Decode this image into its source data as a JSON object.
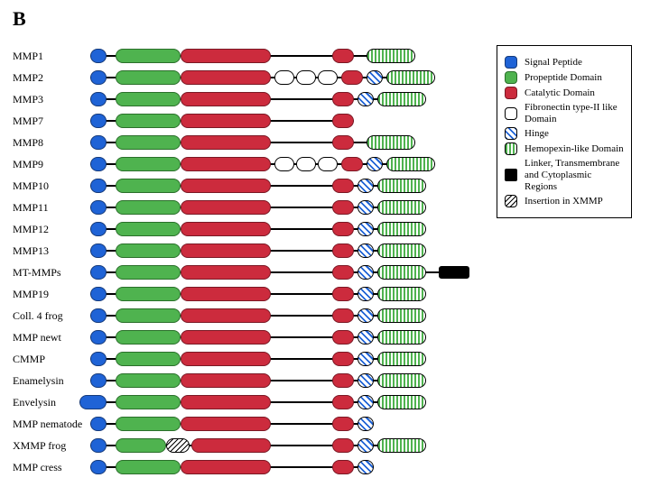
{
  "panel_letter": "B",
  "fonts": {
    "label_size": 12,
    "legend_size": 11,
    "panel_letter_size": 22
  },
  "track_width": 454,
  "domain_types": {
    "signal": {
      "fill": "#1f63d6",
      "pattern": "none",
      "border": "#153a7a"
    },
    "propeptide": {
      "fill": "#4fb34f",
      "pattern": "none",
      "border": "#2a6f2a"
    },
    "catalytic": {
      "fill": "#cc2b3d",
      "pattern": "none",
      "border": "#7a1824"
    },
    "fibronectin": {
      "fill": "#ffffff",
      "pattern": "none",
      "border": "#000000"
    },
    "hinge": {
      "fill": "#ffffff",
      "pattern": "diag-blue",
      "border": "#000000"
    },
    "hemopexin": {
      "fill": "#ffffff",
      "pattern": "vstripes-green",
      "border": "#000000"
    },
    "linker": {
      "fill": "#000000",
      "pattern": "none",
      "border": "#000000"
    },
    "insertion": {
      "fill": "#ffffff",
      "pattern": "zigzag",
      "border": "#000000"
    }
  },
  "legend": [
    {
      "type": "signal",
      "label": "Signal Peptide"
    },
    {
      "type": "propeptide",
      "label": "Propeptide Domain"
    },
    {
      "type": "catalytic",
      "label": "Catalytic Domain"
    },
    {
      "type": "fibronectin",
      "label": "Fibronectin type-II like Domain"
    },
    {
      "type": "hinge",
      "label": "Hinge"
    },
    {
      "type": "hemopexin",
      "label": "Hemopexin-like Domain"
    },
    {
      "type": "linker",
      "label": "Linker, Transmembrane and Cytoplasmic Regions"
    },
    {
      "type": "insertion",
      "label": "Insertion in XMMP"
    }
  ],
  "rows": [
    {
      "label": "MMP1",
      "conn": [
        0,
        360
      ],
      "segs": [
        [
          "signal",
          0,
          18
        ],
        [
          "propeptide",
          28,
          72
        ],
        [
          "catalytic",
          100,
          100
        ],
        [
          "catalytic",
          268,
          24
        ],
        [
          "hemopexin",
          306,
          54
        ]
      ]
    },
    {
      "label": "MMP2",
      "conn": [
        0,
        360
      ],
      "segs": [
        [
          "signal",
          0,
          18
        ],
        [
          "propeptide",
          28,
          72
        ],
        [
          "catalytic",
          100,
          100
        ],
        [
          "fibronectin",
          204,
          22
        ],
        [
          "fibronectin",
          228,
          22
        ],
        [
          "fibronectin",
          252,
          22
        ],
        [
          "catalytic",
          278,
          24
        ],
        [
          "hinge",
          306,
          18
        ],
        [
          "hemopexin",
          328,
          54
        ]
      ]
    },
    {
      "label": "MMP3",
      "conn": [
        0,
        360
      ],
      "segs": [
        [
          "signal",
          0,
          18
        ],
        [
          "propeptide",
          28,
          72
        ],
        [
          "catalytic",
          100,
          100
        ],
        [
          "catalytic",
          268,
          24
        ],
        [
          "hinge",
          296,
          18
        ],
        [
          "hemopexin",
          318,
          54
        ]
      ]
    },
    {
      "label": "MMP7",
      "conn": [
        0,
        292
      ],
      "segs": [
        [
          "signal",
          0,
          18
        ],
        [
          "propeptide",
          28,
          72
        ],
        [
          "catalytic",
          100,
          100
        ],
        [
          "catalytic",
          268,
          24
        ]
      ]
    },
    {
      "label": "MMP8",
      "conn": [
        0,
        360
      ],
      "segs": [
        [
          "signal",
          0,
          18
        ],
        [
          "propeptide",
          28,
          72
        ],
        [
          "catalytic",
          100,
          100
        ],
        [
          "catalytic",
          268,
          24
        ],
        [
          "hemopexin",
          306,
          54
        ]
      ]
    },
    {
      "label": "MMP9",
      "conn": [
        0,
        382
      ],
      "segs": [
        [
          "signal",
          0,
          18
        ],
        [
          "propeptide",
          28,
          72
        ],
        [
          "catalytic",
          100,
          100
        ],
        [
          "fibronectin",
          204,
          22
        ],
        [
          "fibronectin",
          228,
          22
        ],
        [
          "fibronectin",
          252,
          22
        ],
        [
          "catalytic",
          278,
          24
        ],
        [
          "hinge",
          306,
          18
        ],
        [
          "hemopexin",
          328,
          54
        ]
      ]
    },
    {
      "label": "MMP10",
      "conn": [
        0,
        360
      ],
      "segs": [
        [
          "signal",
          0,
          18
        ],
        [
          "propeptide",
          28,
          72
        ],
        [
          "catalytic",
          100,
          100
        ],
        [
          "catalytic",
          268,
          24
        ],
        [
          "hinge",
          296,
          18
        ],
        [
          "hemopexin",
          318,
          54
        ]
      ]
    },
    {
      "label": "MMP11",
      "conn": [
        0,
        360
      ],
      "segs": [
        [
          "signal",
          0,
          18
        ],
        [
          "propeptide",
          28,
          72
        ],
        [
          "catalytic",
          100,
          100
        ],
        [
          "catalytic",
          268,
          24
        ],
        [
          "hinge",
          296,
          18
        ],
        [
          "hemopexin",
          318,
          54
        ]
      ]
    },
    {
      "label": "MMP12",
      "conn": [
        0,
        360
      ],
      "segs": [
        [
          "signal",
          0,
          18
        ],
        [
          "propeptide",
          28,
          72
        ],
        [
          "catalytic",
          100,
          100
        ],
        [
          "catalytic",
          268,
          24
        ],
        [
          "hinge",
          296,
          18
        ],
        [
          "hemopexin",
          318,
          54
        ]
      ]
    },
    {
      "label": "MMP13",
      "conn": [
        0,
        360
      ],
      "segs": [
        [
          "signal",
          0,
          18
        ],
        [
          "propeptide",
          28,
          72
        ],
        [
          "catalytic",
          100,
          100
        ],
        [
          "catalytic",
          268,
          24
        ],
        [
          "hinge",
          296,
          18
        ],
        [
          "hemopexin",
          318,
          54
        ]
      ]
    },
    {
      "label": "MT-MMPs",
      "conn": [
        0,
        420
      ],
      "segs": [
        [
          "signal",
          0,
          18
        ],
        [
          "propeptide",
          28,
          72
        ],
        [
          "catalytic",
          100,
          100
        ],
        [
          "catalytic",
          268,
          24
        ],
        [
          "hinge",
          296,
          18
        ],
        [
          "hemopexin",
          318,
          54
        ],
        [
          "linker",
          386,
          34
        ]
      ]
    },
    {
      "label": "MMP19",
      "conn": [
        0,
        360
      ],
      "segs": [
        [
          "signal",
          0,
          18
        ],
        [
          "propeptide",
          28,
          72
        ],
        [
          "catalytic",
          100,
          100
        ],
        [
          "catalytic",
          268,
          24
        ],
        [
          "hinge",
          296,
          18
        ],
        [
          "hemopexin",
          318,
          54
        ]
      ]
    },
    {
      "label": "Coll. 4 frog",
      "conn": [
        0,
        360
      ],
      "segs": [
        [
          "signal",
          0,
          18
        ],
        [
          "propeptide",
          28,
          72
        ],
        [
          "catalytic",
          100,
          100
        ],
        [
          "catalytic",
          268,
          24
        ],
        [
          "hinge",
          296,
          18
        ],
        [
          "hemopexin",
          318,
          54
        ]
      ]
    },
    {
      "label": "MMP newt",
      "conn": [
        0,
        360
      ],
      "segs": [
        [
          "signal",
          0,
          18
        ],
        [
          "propeptide",
          28,
          72
        ],
        [
          "catalytic",
          100,
          100
        ],
        [
          "catalytic",
          268,
          24
        ],
        [
          "hinge",
          296,
          18
        ],
        [
          "hemopexin",
          318,
          54
        ]
      ]
    },
    {
      "label": "CMMP",
      "conn": [
        0,
        360
      ],
      "segs": [
        [
          "signal",
          0,
          18
        ],
        [
          "propeptide",
          28,
          72
        ],
        [
          "catalytic",
          100,
          100
        ],
        [
          "catalytic",
          268,
          24
        ],
        [
          "hinge",
          296,
          18
        ],
        [
          "hemopexin",
          318,
          54
        ]
      ]
    },
    {
      "label": "Enamelysin",
      "conn": [
        0,
        360
      ],
      "segs": [
        [
          "signal",
          0,
          18
        ],
        [
          "propeptide",
          28,
          72
        ],
        [
          "catalytic",
          100,
          100
        ],
        [
          "catalytic",
          268,
          24
        ],
        [
          "hinge",
          296,
          18
        ],
        [
          "hemopexin",
          318,
          54
        ]
      ]
    },
    {
      "label": "Envelysin",
      "conn": [
        -12,
        360
      ],
      "segs": [
        [
          "signal",
          -12,
          30
        ],
        [
          "propeptide",
          28,
          72
        ],
        [
          "catalytic",
          100,
          100
        ],
        [
          "catalytic",
          268,
          24
        ],
        [
          "hinge",
          296,
          18
        ],
        [
          "hemopexin",
          318,
          54
        ]
      ]
    },
    {
      "label": "MMP nematode",
      "conn": [
        0,
        314
      ],
      "segs": [
        [
          "signal",
          0,
          18
        ],
        [
          "propeptide",
          28,
          72
        ],
        [
          "catalytic",
          100,
          100
        ],
        [
          "catalytic",
          268,
          24
        ],
        [
          "hinge",
          296,
          18
        ]
      ]
    },
    {
      "label": "XMMP frog",
      "conn": [
        0,
        360
      ],
      "segs": [
        [
          "signal",
          0,
          18
        ],
        [
          "propeptide",
          28,
          56
        ],
        [
          "insertion",
          84,
          26
        ],
        [
          "catalytic",
          112,
          88
        ],
        [
          "catalytic",
          268,
          24
        ],
        [
          "hinge",
          296,
          18
        ],
        [
          "hemopexin",
          318,
          54
        ]
      ]
    },
    {
      "label": "MMP cress",
      "conn": [
        0,
        314
      ],
      "segs": [
        [
          "signal",
          0,
          18
        ],
        [
          "propeptide",
          28,
          72
        ],
        [
          "catalytic",
          100,
          100
        ],
        [
          "catalytic",
          268,
          24
        ],
        [
          "hinge",
          296,
          18
        ]
      ]
    }
  ]
}
